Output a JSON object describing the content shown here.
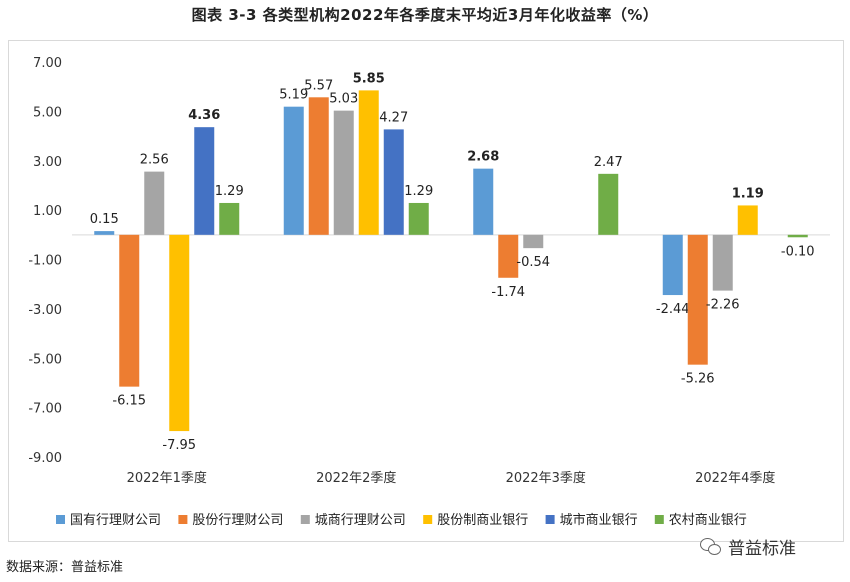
{
  "figure": {
    "title": "图表 3-3  各类型机构2022年各季度末平均近3月年化收益率（%）",
    "title_superscript": "3",
    "source": "数据来源：普益标准",
    "watermark": "普益标准"
  },
  "chart_data": {
    "type": "bar",
    "title": "",
    "xlabel": "",
    "ylabel": "",
    "categories": [
      "2022年1季度",
      "2022年2季度",
      "2022年3季度",
      "2022年4季度"
    ],
    "yticks": [
      "7.00",
      "5.00",
      "3.00",
      "1.00",
      "-1.00",
      "-3.00",
      "-5.00",
      "-7.00",
      "-9.00"
    ],
    "ylim": [
      -9,
      7
    ],
    "grid": false,
    "legend_position": "bottom",
    "series": [
      {
        "name": "国有行理财公司",
        "color": "#5b9bd5",
        "values": [
          0.15,
          5.19,
          2.68,
          -2.44
        ],
        "labels": [
          "0.15",
          "5.19",
          "2.68",
          "-2.44"
        ],
        "bold": [
          false,
          false,
          true,
          false
        ]
      },
      {
        "name": "股份行理财公司",
        "color": "#ed7d31",
        "values": [
          -6.15,
          5.57,
          -1.74,
          -5.26
        ],
        "labels": [
          "-6.15",
          "5.57",
          "-1.74",
          "-5.26"
        ],
        "bold": [
          false,
          false,
          false,
          false
        ]
      },
      {
        "name": "城商行理财公司",
        "color": "#a5a5a5",
        "values": [
          2.56,
          5.03,
          -0.54,
          -2.26
        ],
        "labels": [
          "2.56",
          "5.03",
          "-0.54",
          "-2.26"
        ],
        "bold": [
          false,
          false,
          false,
          false
        ]
      },
      {
        "name": "股份制商业银行",
        "color": "#ffc000",
        "values": [
          -7.95,
          5.85,
          null,
          1.19
        ],
        "labels": [
          "-7.95",
          "5.85",
          "",
          "1.19"
        ],
        "bold": [
          false,
          true,
          false,
          true
        ]
      },
      {
        "name": "城市商业银行",
        "color": "#4472c4",
        "values": [
          4.36,
          4.27,
          null,
          null
        ],
        "labels": [
          "4.36",
          "4.27",
          "",
          ""
        ],
        "bold": [
          true,
          false,
          false,
          false
        ]
      },
      {
        "name": "农村商业银行",
        "color": "#70ad47",
        "values": [
          1.29,
          1.29,
          2.47,
          -0.1
        ],
        "labels": [
          "1.29",
          "1.29",
          "2.47",
          "-0.10"
        ],
        "bold": [
          false,
          false,
          false,
          false
        ]
      }
    ]
  }
}
